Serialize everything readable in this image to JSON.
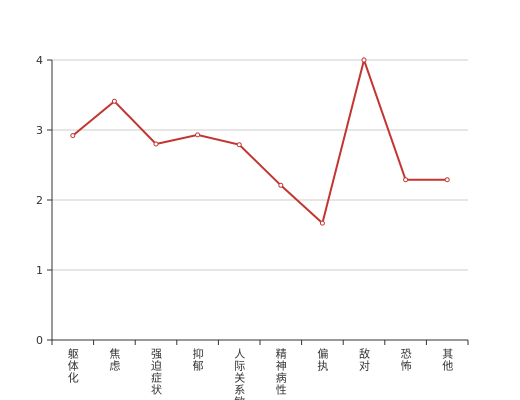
{
  "chart_data": {
    "type": "line",
    "categories": [
      "躯体化",
      "焦虑",
      "强迫症状",
      "抑郁",
      "人际关系敏感",
      "精神病性",
      "偏执",
      "敌对",
      "恐怖",
      "其他"
    ],
    "series": [
      {
        "color": "#c23531",
        "values": [
          2.92,
          3.41,
          2.8,
          2.93,
          2.79,
          2.21,
          1.67,
          4.0,
          2.29,
          2.29
        ]
      }
    ],
    "ylim": [
      0,
      4
    ],
    "yticks": [
      0,
      1,
      2,
      3,
      4
    ],
    "grid": true
  }
}
